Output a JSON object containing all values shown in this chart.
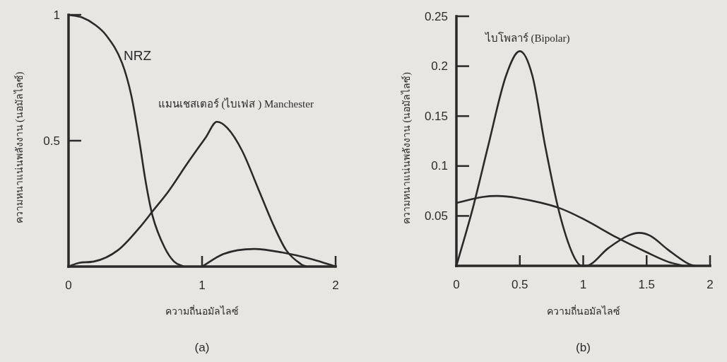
{
  "chart_data": [
    {
      "type": "line",
      "xlabel": "ความถี่นอมัลไลซ์",
      "ylabel": "ความหนาแน่นพลังงาน (นอมัลไลซ์)",
      "annotations": [
        "(a)"
      ],
      "xlim": [
        0,
        2
      ],
      "ylim": [
        0,
        1
      ],
      "xticks": [
        0,
        1,
        2
      ],
      "yticks": [
        0.5,
        1
      ],
      "grid": false,
      "marker": "none",
      "line_style": "solid",
      "series": [
        {
          "name": "NRZ",
          "color": "#2a2a2a",
          "x": [
            0,
            0.1,
            0.2,
            0.28,
            0.4,
            0.47,
            0.53,
            0.58,
            0.63,
            0.72,
            0.79,
            0.86
          ],
          "values": [
            1,
            0.99,
            0.96,
            0.92,
            0.81,
            0.68,
            0.5,
            0.33,
            0.2,
            0.075,
            0.02,
            0
          ]
        },
        {
          "name": "แมนเชสเตอร์ (ไบเฟส ) Manchester",
          "color": "#2a2a2a",
          "x": [
            0,
            0.08,
            0.19,
            0.37,
            0.54,
            0.63,
            0.75,
            0.89,
            1.03,
            1.11,
            1.19,
            1.3,
            1.42,
            1.53,
            1.63,
            1.74,
            1.78
          ],
          "values": [
            0,
            0.015,
            0.02,
            0.065,
            0.16,
            0.22,
            0.3,
            0.41,
            0.515,
            0.575,
            0.55,
            0.46,
            0.31,
            0.17,
            0.065,
            0.01,
            0
          ]
        },
        {
          "color": "#2a2a2a",
          "x": [
            1,
            1.16,
            1.39,
            1.6,
            1.83,
            2
          ],
          "values": [
            0,
            0.05,
            0.07,
            0.056,
            0.028,
            0
          ]
        }
      ]
    },
    {
      "type": "line",
      "xlabel": "ความถี่นอมัลไลซ์",
      "ylabel": "ความหนาแน่นพลังงาน (นอมัลไลซ์)",
      "annotations": [
        "(b)"
      ],
      "xlim": [
        0,
        2
      ],
      "ylim": [
        0,
        0.25
      ],
      "xticks": [
        0,
        0.5,
        1,
        1.5,
        2
      ],
      "yticks": [
        0.05,
        0.1,
        0.15,
        0.2,
        0.25
      ],
      "grid": false,
      "marker": "none",
      "line_style": "solid",
      "series": [
        {
          "name": "ไบโพลาร์ (Bipolar)",
          "color": "#2a2a2a",
          "x": [
            0,
            0.13,
            0.25,
            0.39,
            0.5,
            0.6,
            0.7,
            0.81,
            0.92,
            0.99,
            1.02,
            1.2,
            1.35,
            1.44,
            1.53,
            1.67,
            1.83,
            1.88
          ],
          "values": [
            0,
            0.058,
            0.12,
            0.19,
            0.215,
            0.19,
            0.12,
            0.054,
            0.011,
            0,
            0,
            0.018,
            0.03,
            0.033,
            0.03,
            0.016,
            0.002,
            0
          ]
        },
        {
          "color": "#2a2a2a",
          "x": [
            0,
            0.21,
            0.32,
            0.48,
            0.81,
            1,
            1.27,
            1.5,
            1.67,
            1.79
          ],
          "values": [
            0.063,
            0.069,
            0.07,
            0.068,
            0.058,
            0.047,
            0.028,
            0.0136,
            0.004,
            0
          ]
        }
      ]
    }
  ]
}
